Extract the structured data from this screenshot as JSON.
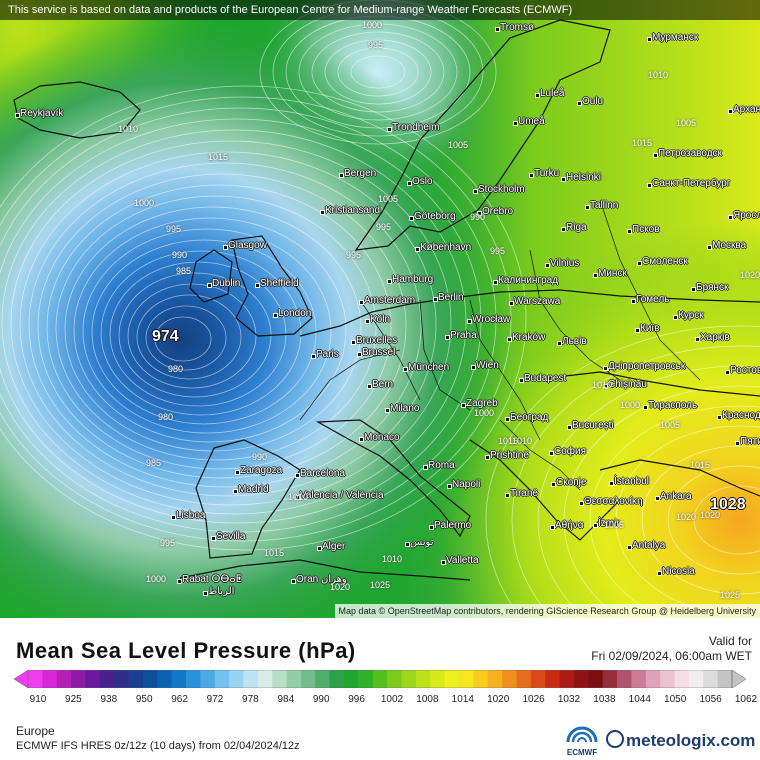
{
  "banner": {
    "text": "This service is based on data and products of the European Centre for Medium-range Weather Forecasts (ECMWF)"
  },
  "map": {
    "attribution": "Map data © OpenStreetMap contributors, rendering GIScience Research Group @ Heidelberg University",
    "extremes": {
      "low": "974",
      "high": "1028"
    },
    "cities": [
      "Reykjavík",
      "Tromsø",
      "Мурманск",
      "Luleå",
      "Oulu",
      "Архангельск",
      "Trondheim",
      "Umeå",
      "Петрозаводск",
      "Bergen",
      "Oslo",
      "Turku",
      "Helsinki",
      "Санкт-Петербург",
      "Stockholm",
      "Örebro",
      "Tallinn",
      "Kristiansand",
      "Göteborg",
      "Ярославль",
      "Glasgow",
      "København",
      "Riga",
      "Псков",
      "Москва",
      "Dublin",
      "Sheffield",
      "Hamburg",
      "Vilnius",
      "Смоленск",
      "Калининград",
      "Минск",
      "Брянск",
      "London",
      "Amsterdam",
      "Berlin",
      "Warszawa",
      "Гомель",
      "Курск",
      "Köln",
      "Bruxelles",
      "Brussel",
      "Praha",
      "Wrocław",
      "Kraków",
      "Львів",
      "Київ",
      "Харків",
      "Paris",
      "München",
      "Wien",
      "Budapest",
      "Дніпропетровськ",
      "Ростов",
      "Bern",
      "Milano",
      "Chişinău",
      "Тирасполь",
      "Краснодар",
      "Zagreb",
      "Београд",
      "Monaco",
      "București",
      "Zaragoza",
      "Barcelona",
      "Roma",
      "Prishtinë",
      "София",
      "Madrid",
      "Valencia / València",
      "Napoli",
      "Tiranë",
      "Скопје",
      "İstanbul",
      "Ankara",
      "Lisboa",
      "Θεσσαλονίκη",
      "İzmir",
      "Sevilla",
      "Palermo",
      "Αθήνα",
      "Antalya",
      "Alger",
      "تونس",
      "Valletta",
      "Rabat ⵔⴱⴰⵟ",
      "الرباط",
      "Oran وهران",
      "Nicosia",
      "Пятигорск"
    ],
    "isobar_labels": [
      "1000",
      "995",
      "1010",
      "1015",
      "1005",
      "1000",
      "995",
      "990",
      "985",
      "995",
      "1005",
      "995",
      "1010",
      "1005",
      "1015",
      "1020",
      "990",
      "985",
      "980",
      "995",
      "1000",
      "1010",
      "1015",
      "1020",
      "1025",
      "1015",
      "1010",
      "1005",
      "1000",
      "995",
      "990",
      "1010",
      "1015",
      "1020",
      "1025",
      "1005",
      "1000",
      "980",
      "1010",
      "1020"
    ]
  },
  "legend": {
    "title": "Mean Sea Level Pressure (hPa)",
    "valid_label": "Valid for",
    "valid_time": "Fri 02/09/2024, 06:00am WET",
    "ticks": [
      "910",
      "925",
      "938",
      "950",
      "962",
      "972",
      "978",
      "984",
      "990",
      "996",
      "1002",
      "1008",
      "1014",
      "1020",
      "1026",
      "1032",
      "1038",
      "1044",
      "1050",
      "1056",
      "1062"
    ],
    "colors": [
      "#f23cf2",
      "#d429d4",
      "#b51fb5",
      "#8f1aa3",
      "#6b1a9c",
      "#4a1f8f",
      "#2e2f8a",
      "#1a3f91",
      "#0e4f9c",
      "#0b62b0",
      "#1177c7",
      "#2893dc",
      "#4baae6",
      "#72c1ee",
      "#9ad3f2",
      "#bfe3f2",
      "#d6ece6",
      "#b9ddc8",
      "#94cda6",
      "#73bd8a",
      "#4fad6a",
      "#2fa04a",
      "#1fa62f",
      "#30b226",
      "#55bf20",
      "#7acb1c",
      "#9dd61a",
      "#bde11a",
      "#d9ea1a",
      "#eef01f",
      "#f6e51f",
      "#f8cc1f",
      "#f7b01f",
      "#f0901c",
      "#e66e1a",
      "#d94a17",
      "#c72b14",
      "#ad1a14",
      "#8f1214",
      "#7a1010",
      "#962e3e",
      "#b3546e",
      "#cc7a95",
      "#e0a2b8",
      "#edc2d0",
      "#f5dde5",
      "#f2eef0",
      "#dcdcdc",
      "#c4c4c4"
    ],
    "region": "Europe",
    "model": "ECMWF IFS HRES 0z/12z (10 days) from 02/04/2024/12z",
    "brand_small": "ECMWF",
    "brand": "meteologix.com"
  }
}
